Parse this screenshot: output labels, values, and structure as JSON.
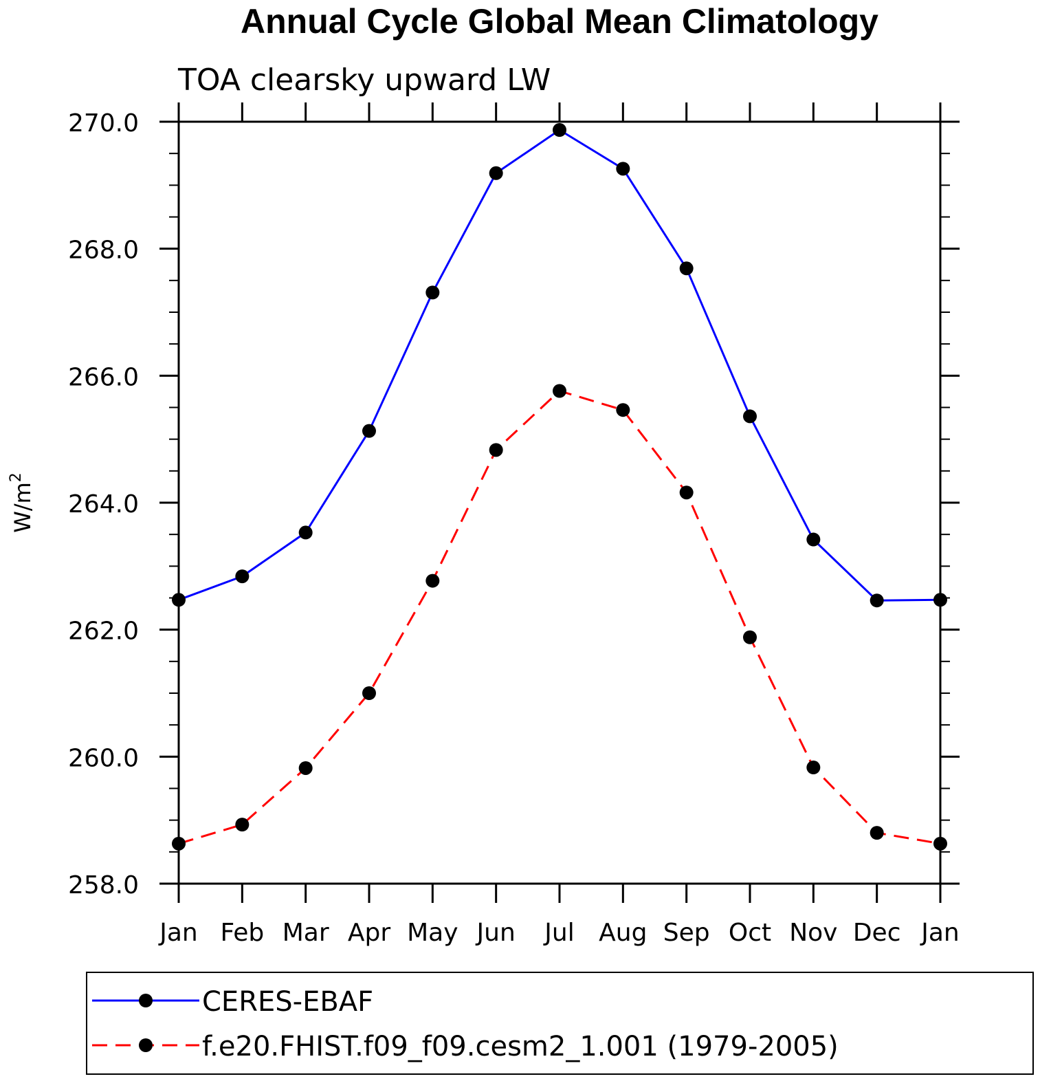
{
  "chart_data": {
    "type": "line",
    "title": "Annual Cycle Global Mean Climatology",
    "subtitle": "TOA clearsky upward LW",
    "ylabel": "W/m",
    "ylabel_superscript": "2",
    "categories": [
      "Jan",
      "Feb",
      "Mar",
      "Apr",
      "May",
      "Jun",
      "Jul",
      "Aug",
      "Sep",
      "Oct",
      "Nov",
      "Dec",
      "Jan"
    ],
    "ylim": [
      258.0,
      270.0
    ],
    "yticks": [
      "258.0",
      "260.0",
      "262.0",
      "264.0",
      "266.0",
      "268.0",
      "270.0"
    ],
    "grid": false,
    "legend_position": "bottom",
    "series": [
      {
        "name": "CERES-EBAF",
        "color": "#0000ff",
        "dash": "solid",
        "marker": "filled-circle",
        "values": [
          262.47,
          262.84,
          263.53,
          265.13,
          267.31,
          269.19,
          269.87,
          269.26,
          267.69,
          265.36,
          263.42,
          262.46,
          262.47
        ]
      },
      {
        "name": "f.e20.FHIST.f09_f09.cesm2_1.001 (1979-2005)",
        "color": "#ff0000",
        "dash": "dashed",
        "marker": "filled-circle",
        "values": [
          258.63,
          258.93,
          259.82,
          261.0,
          262.77,
          264.83,
          265.76,
          265.46,
          264.16,
          261.88,
          259.83,
          258.8,
          258.63
        ]
      }
    ]
  }
}
